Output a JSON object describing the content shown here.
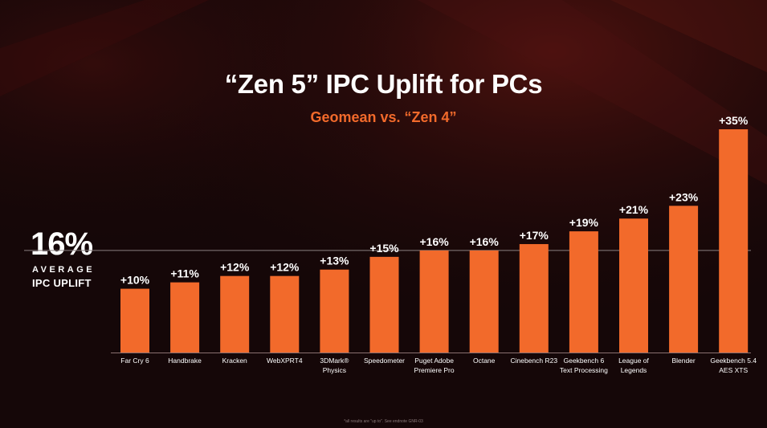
{
  "header": {
    "title": "“Zen 5” IPC Uplift for PCs",
    "subtitle": "Geomean vs. “Zen 4”"
  },
  "average": {
    "value": "16%",
    "label_line1": "AVERAGE",
    "label_line2": "IPC UPLIFT"
  },
  "footnote": "*all results are \"up to\". See endnote GNR-03",
  "colors": {
    "bar": "#f26a2b",
    "background": "#150708",
    "subtitle": "#f26a2b"
  },
  "chart_data": {
    "type": "bar",
    "title": "“Zen 5” IPC Uplift for PCs",
    "subtitle": "Geomean vs. “Zen 4”",
    "categories": [
      [
        "Far Cry 6"
      ],
      [
        "Handbrake"
      ],
      [
        "Kracken"
      ],
      [
        "WebXPRT4"
      ],
      [
        "3DMark®",
        "Physics"
      ],
      [
        "Speedometer"
      ],
      [
        "Puget Adobe",
        "Premiere Pro"
      ],
      [
        "Octane"
      ],
      [
        "Cinebench R23"
      ],
      [
        "Geekbench 6",
        "Text Processing"
      ],
      [
        "League of",
        "Legends"
      ],
      [
        "Blender"
      ],
      [
        "Geekbench 5.4",
        "AES XTS"
      ]
    ],
    "values": [
      10,
      11,
      12,
      12,
      13,
      15,
      16,
      16,
      17,
      19,
      21,
      23,
      35
    ],
    "value_labels": [
      "+10%",
      "+11%",
      "+12%",
      "+12%",
      "+13%",
      "+15%",
      "+16%",
      "+16%",
      "+17%",
      "+19%",
      "+21%",
      "+23%",
      "+35%"
    ],
    "reference_line": {
      "value": 16,
      "label": "16% AVERAGE IPC UPLIFT"
    },
    "ylim": [
      0,
      35
    ],
    "xlabel": "",
    "ylabel": "",
    "grid": false,
    "legend": "none"
  }
}
